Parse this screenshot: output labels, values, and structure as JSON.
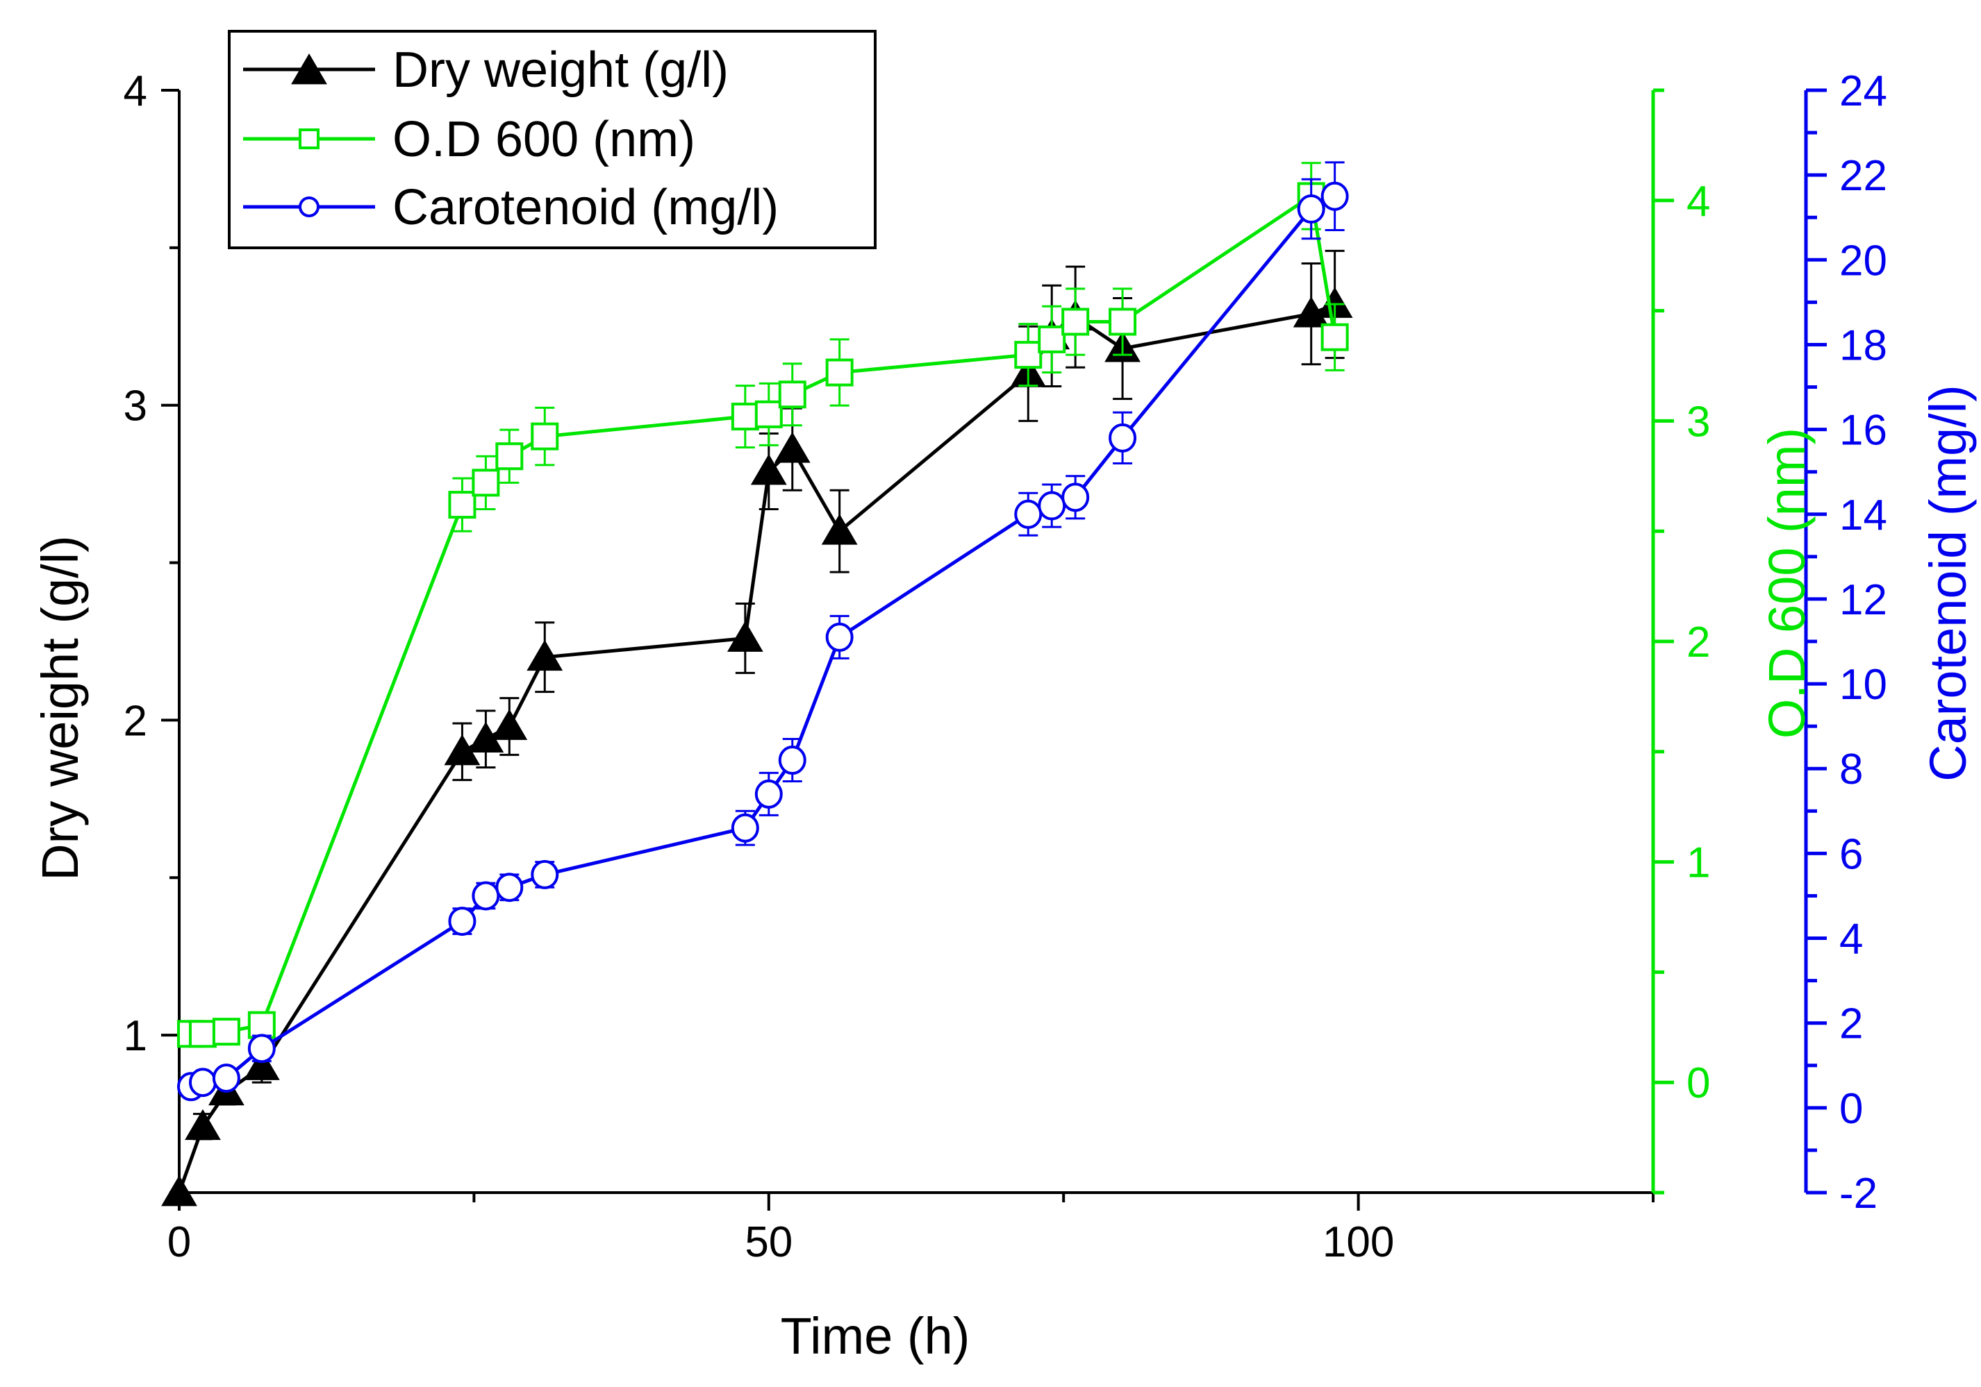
{
  "chart_data": {
    "type": "line",
    "title": "",
    "xlabel": "Time (h)",
    "xlim": [
      0,
      125
    ],
    "xticks": [
      0,
      50,
      100
    ],
    "x_tick_labels": [
      "0",
      "50",
      "100"
    ],
    "axes": {
      "dry": {
        "label": "Dry weight (g/l)",
        "lim": [
          0.5,
          4
        ],
        "ticks": [
          1,
          2,
          3,
          4
        ],
        "tick_labels": [
          "1",
          "2",
          "3",
          "4"
        ],
        "position": "left",
        "color": "#000000"
      },
      "od": {
        "label": "O.D 600 (nm)",
        "lim": [
          -0.5,
          4.5
        ],
        "ticks": [
          0,
          1,
          2,
          3,
          4
        ],
        "tick_labels": [
          "0",
          "1",
          "2",
          "3",
          "4"
        ],
        "position": "right",
        "color": "#00e600"
      },
      "caro": {
        "label": "Carotenoid (mg/l)",
        "lim": [
          -2,
          24
        ],
        "ticks": [
          -2,
          0,
          2,
          4,
          6,
          8,
          10,
          12,
          14,
          16,
          18,
          20,
          22,
          24
        ],
        "tick_labels": [
          "-2",
          "0",
          "2",
          "4",
          "6",
          "8",
          "10",
          "12",
          "14",
          "16",
          "18",
          "20",
          "22",
          "24"
        ],
        "position": "far-right",
        "color": "#0000ee"
      }
    },
    "series": [
      {
        "name": "Dry weight (g/l)",
        "axis": "dry",
        "marker": "triangle-filled",
        "color": "#000000",
        "x": [
          0,
          2,
          4,
          7,
          24,
          26,
          28,
          31,
          48,
          50,
          52,
          56,
          72,
          74,
          76,
          80,
          96,
          98
        ],
        "y": [
          0.5,
          0.71,
          0.82,
          0.9,
          1.9,
          1.94,
          1.98,
          2.2,
          2.26,
          2.79,
          2.86,
          2.6,
          3.1,
          3.22,
          3.28,
          3.18,
          3.29,
          3.32
        ],
        "err": [
          0,
          0.04,
          0.04,
          0.05,
          0.09,
          0.09,
          0.09,
          0.11,
          0.11,
          0.12,
          0.13,
          0.13,
          0.15,
          0.16,
          0.16,
          0.16,
          0.16,
          0.17
        ]
      },
      {
        "name": "O.D 600 (nm)",
        "axis": "od",
        "marker": "square-open",
        "color": "#00e600",
        "x": [
          1,
          2,
          4,
          7,
          24,
          26,
          28,
          31,
          48,
          50,
          52,
          56,
          72,
          74,
          76,
          80,
          96,
          98
        ],
        "y": [
          0.22,
          0.22,
          0.23,
          0.26,
          2.62,
          2.72,
          2.84,
          2.93,
          3.02,
          3.03,
          3.12,
          3.22,
          3.3,
          3.37,
          3.45,
          3.45,
          4.02,
          3.38
        ],
        "err": [
          0.03,
          0.03,
          0.03,
          0.04,
          0.12,
          0.12,
          0.12,
          0.13,
          0.14,
          0.14,
          0.14,
          0.15,
          0.14,
          0.15,
          0.15,
          0.15,
          0.15,
          0.15
        ]
      },
      {
        "name": "Carotenoid (mg/l)",
        "axis": "caro",
        "marker": "circle-open",
        "color": "#0000ee",
        "x": [
          1,
          2,
          4,
          7,
          24,
          26,
          28,
          31,
          48,
          50,
          52,
          56,
          72,
          74,
          76,
          80,
          96,
          98
        ],
        "y": [
          0.5,
          0.6,
          0.7,
          1.4,
          4.4,
          5.0,
          5.2,
          5.5,
          6.6,
          7.4,
          8.2,
          11.1,
          14.0,
          14.2,
          14.4,
          15.8,
          21.2,
          21.5
        ],
        "err": [
          0.2,
          0.2,
          0.2,
          0.3,
          0.3,
          0.3,
          0.3,
          0.3,
          0.4,
          0.5,
          0.5,
          0.5,
          0.5,
          0.5,
          0.5,
          0.6,
          0.7,
          0.8
        ]
      }
    ],
    "legend": {
      "placement": "top-left",
      "entries": [
        "Dry weight (g/l)",
        "O.D 600 (nm)",
        "Carotenoid (mg/l)"
      ]
    }
  }
}
